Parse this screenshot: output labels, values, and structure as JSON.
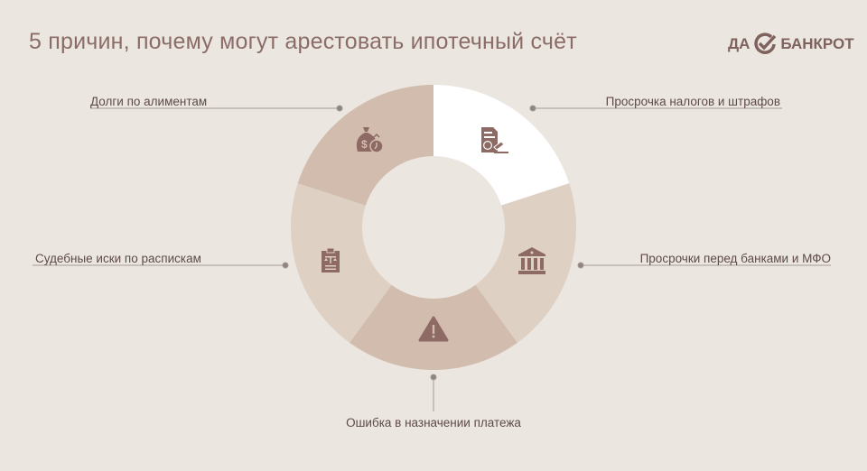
{
  "title": "5 причин, почему могут арестовать ипотечный счёт",
  "logo": {
    "left": "ДА",
    "right": "БАНКРОТ"
  },
  "colors": {
    "background": "#ebe6e0",
    "text": "#8b6c67",
    "icon": "#8e6a64",
    "segment_white": "#ffffff",
    "segment_light": "#dfd0c4",
    "segment_medium": "#d1bcad"
  },
  "segments": [
    {
      "label": "Просрочка налогов и штрафов",
      "icon": "tax-document-gavel-icon",
      "color": "#ffffff"
    },
    {
      "label": "Просрочки перед банками и МФО",
      "icon": "bank-icon",
      "color": "#dfd0c4"
    },
    {
      "label": "Ошибка в назначении платежа",
      "icon": "warning-icon",
      "color": "#d1bcad"
    },
    {
      "label": "Судебные иски по распискам",
      "icon": "court-document-scales-icon",
      "color": "#dfd0c4"
    },
    {
      "label": "Долги по алиментам",
      "icon": "money-bag-icon",
      "color": "#d1bcad"
    }
  ]
}
